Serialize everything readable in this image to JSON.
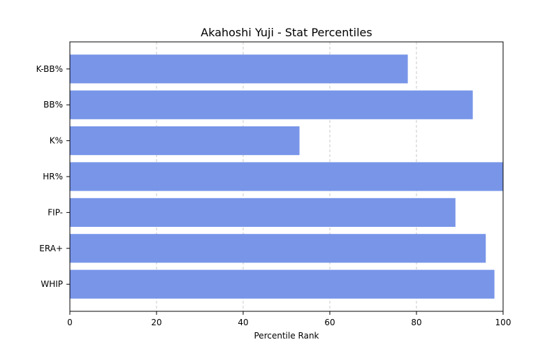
{
  "chart_data": {
    "type": "bar",
    "orientation": "horizontal",
    "title": "Akahoshi Yuji - Stat Percentiles",
    "xlabel": "Percentile Rank",
    "ylabel": "",
    "categories": [
      "K-BB%",
      "BB%",
      "K%",
      "HR%",
      "FIP-",
      "ERA+",
      "WHIP"
    ],
    "values": [
      78,
      93,
      53,
      100,
      89,
      96,
      98
    ],
    "xlim": [
      0,
      100
    ],
    "xticks": [
      "0",
      "20",
      "40",
      "60",
      "80",
      "100"
    ],
    "grid": "vertical dashed",
    "bar_color": "#7895e8"
  }
}
